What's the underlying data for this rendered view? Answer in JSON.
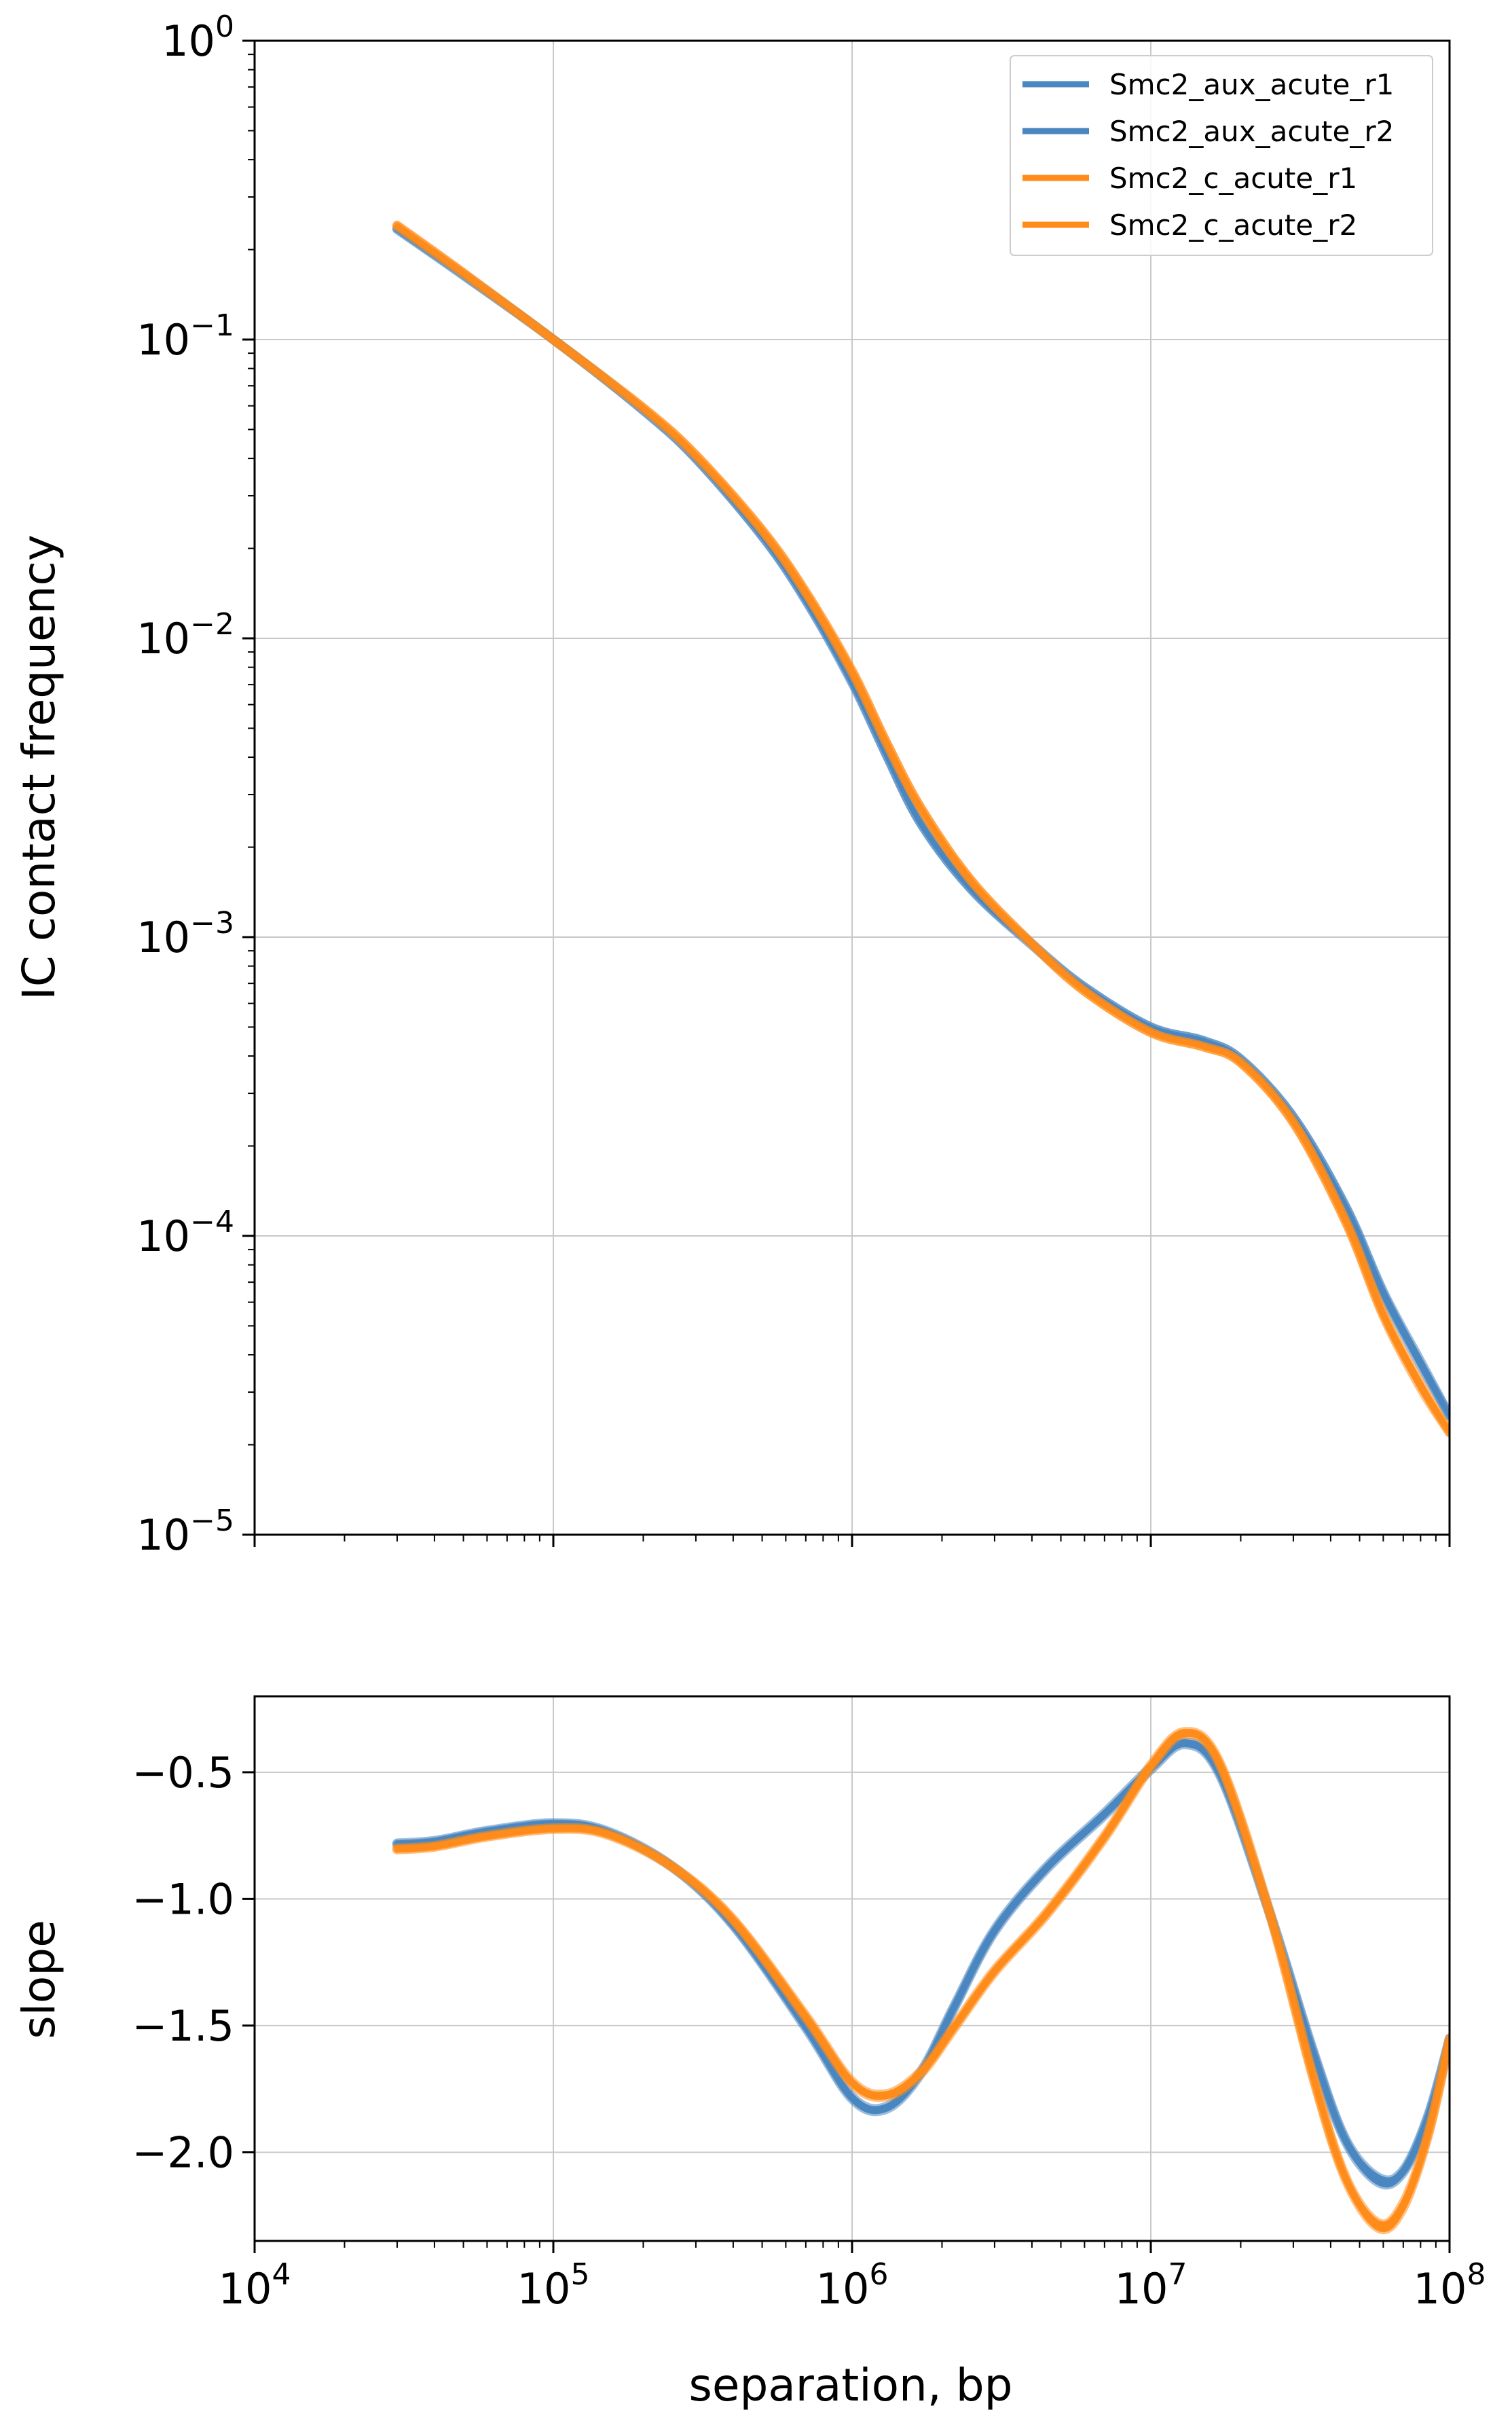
{
  "figure": {
    "xlabel": "separation, bp",
    "colors": {
      "aux": "#4a86c0",
      "c": "#ff8c1a",
      "grid": "#c8c8c8"
    }
  },
  "chart_data": [
    {
      "type": "line",
      "id": "top",
      "title": "",
      "xlabel": "",
      "ylabel": "IC contact frequency",
      "xscale": "log",
      "yscale": "log",
      "xlim": [
        10000,
        100000000
      ],
      "ylim": [
        1e-05,
        1
      ],
      "grid": true,
      "legend": "top-right",
      "x_ticks": [
        {
          "value": 10000,
          "base": "10",
          "exp": "4"
        },
        {
          "value": 100000,
          "base": "10",
          "exp": "5"
        },
        {
          "value": 1000000,
          "base": "10",
          "exp": "6"
        },
        {
          "value": 10000000,
          "base": "10",
          "exp": "7"
        },
        {
          "value": 100000000,
          "base": "10",
          "exp": "8"
        }
      ],
      "y_ticks": [
        {
          "value": 1,
          "base": "10",
          "exp": "0"
        },
        {
          "value": 0.1,
          "base": "10",
          "exp": "−1"
        },
        {
          "value": 0.01,
          "base": "10",
          "exp": "−2"
        },
        {
          "value": 0.001,
          "base": "10",
          "exp": "−3"
        },
        {
          "value": 0.0001,
          "base": "10",
          "exp": "−4"
        },
        {
          "value": 1e-05,
          "base": "10",
          "exp": "−5"
        }
      ],
      "series": [
        {
          "name": "Smc2_aux_acute_r1",
          "color": "#4a86c0",
          "x": [
            30000,
            50000,
            100000,
            200000,
            300000,
            500000,
            700000,
            1000000,
            1300000,
            1700000,
            2500000,
            4000000,
            6000000,
            10000000,
            15000000,
            20000000,
            30000000,
            45000000,
            60000000,
            80000000,
            100000000
          ],
          "y": [
            0.235,
            0.165,
            0.1,
            0.058,
            0.04,
            0.022,
            0.0135,
            0.0072,
            0.0041,
            0.0024,
            0.00145,
            0.00095,
            0.00068,
            0.0005,
            0.00045,
            0.00039,
            0.00025,
            0.000125,
            6.5e-05,
            3.8e-05,
            2.5e-05
          ]
        },
        {
          "name": "Smc2_aux_acute_r2",
          "color": "#4a86c0",
          "x": [
            30000,
            50000,
            100000,
            200000,
            300000,
            500000,
            700000,
            1000000,
            1300000,
            1700000,
            2500000,
            4000000,
            6000000,
            10000000,
            15000000,
            20000000,
            30000000,
            45000000,
            60000000,
            80000000,
            100000000
          ],
          "y": [
            0.234,
            0.164,
            0.1,
            0.058,
            0.04,
            0.022,
            0.0134,
            0.0071,
            0.0041,
            0.0024,
            0.00145,
            0.00094,
            0.00068,
            0.0005,
            0.00045,
            0.00039,
            0.00025,
            0.000124,
            6.4e-05,
            3.7e-05,
            2.5e-05
          ]
        },
        {
          "name": "Smc2_c_acute_r1",
          "color": "#ff8c1a",
          "x": [
            30000,
            50000,
            100000,
            200000,
            300000,
            500000,
            700000,
            1000000,
            1300000,
            1700000,
            2500000,
            4000000,
            6000000,
            10000000,
            15000000,
            20000000,
            30000000,
            45000000,
            60000000,
            80000000,
            100000000
          ],
          "y": [
            0.24,
            0.167,
            0.1,
            0.059,
            0.041,
            0.023,
            0.0142,
            0.0077,
            0.0045,
            0.0027,
            0.00155,
            0.00095,
            0.00066,
            0.00048,
            0.00043,
            0.00038,
            0.00024,
            0.000112,
            5.5e-05,
            3.2e-05,
            2.2e-05
          ]
        },
        {
          "name": "Smc2_c_acute_r2",
          "color": "#ff8c1a",
          "x": [
            30000,
            50000,
            100000,
            200000,
            300000,
            500000,
            700000,
            1000000,
            1300000,
            1700000,
            2500000,
            4000000,
            6000000,
            10000000,
            15000000,
            20000000,
            30000000,
            45000000,
            60000000,
            80000000,
            100000000
          ],
          "y": [
            0.241,
            0.167,
            0.1,
            0.059,
            0.041,
            0.023,
            0.0143,
            0.0078,
            0.0045,
            0.0027,
            0.00155,
            0.00095,
            0.00066,
            0.00048,
            0.00043,
            0.00038,
            0.00024,
            0.000111,
            5.4e-05,
            3.1e-05,
            2.2e-05
          ]
        }
      ]
    },
    {
      "type": "line",
      "id": "bottom",
      "title": "",
      "xlabel": "separation, bp",
      "ylabel": "slope",
      "xscale": "log",
      "yscale": "linear",
      "xlim": [
        10000,
        100000000
      ],
      "ylim": [
        -2.35,
        -0.2
      ],
      "grid": true,
      "x_ticks": [
        {
          "value": 10000,
          "base": "10",
          "exp": "4"
        },
        {
          "value": 100000,
          "base": "10",
          "exp": "5"
        },
        {
          "value": 1000000,
          "base": "10",
          "exp": "6"
        },
        {
          "value": 10000000,
          "base": "10",
          "exp": "7"
        },
        {
          "value": 100000000,
          "base": "10",
          "exp": "8"
        }
      ],
      "y_ticks": [
        {
          "value": -0.5,
          "label": "−0.5"
        },
        {
          "value": -1.0,
          "label": "−1.0"
        },
        {
          "value": -1.5,
          "label": "−1.5"
        },
        {
          "value": -2.0,
          "label": "−2.0"
        }
      ],
      "series": [
        {
          "name": "Smc2_aux_acute_r1",
          "color": "#4a86c0",
          "x": [
            30000,
            40000,
            60000,
            100000,
            150000,
            250000,
            400000,
            700000,
            1000000,
            1300000,
            1700000,
            2200000,
            3000000,
            4500000,
            7000000,
            10000000,
            13000000,
            17000000,
            25000000,
            35000000,
            45000000,
            58000000,
            70000000,
            85000000,
            100000000
          ],
          "y": [
            -0.78,
            -0.77,
            -0.73,
            -0.7,
            -0.73,
            -0.87,
            -1.1,
            -1.5,
            -1.78,
            -1.82,
            -1.68,
            -1.42,
            -1.12,
            -0.87,
            -0.66,
            -0.48,
            -0.38,
            -0.5,
            -1.05,
            -1.6,
            -1.95,
            -2.1,
            -2.07,
            -1.85,
            -1.55
          ]
        },
        {
          "name": "Smc2_aux_acute_r2",
          "color": "#4a86c0",
          "x": [
            30000,
            40000,
            60000,
            100000,
            150000,
            250000,
            400000,
            700000,
            1000000,
            1300000,
            1700000,
            2200000,
            3000000,
            4500000,
            7000000,
            10000000,
            13000000,
            17000000,
            25000000,
            35000000,
            45000000,
            58000000,
            70000000,
            85000000,
            100000000
          ],
          "y": [
            -0.785,
            -0.775,
            -0.735,
            -0.705,
            -0.735,
            -0.875,
            -1.105,
            -1.51,
            -1.79,
            -1.83,
            -1.69,
            -1.43,
            -1.13,
            -0.88,
            -0.67,
            -0.49,
            -0.39,
            -0.51,
            -1.06,
            -1.61,
            -1.96,
            -2.12,
            -2.08,
            -1.86,
            -1.56
          ]
        },
        {
          "name": "Smc2_c_acute_r1",
          "color": "#ff8c1a",
          "x": [
            30000,
            40000,
            60000,
            100000,
            150000,
            250000,
            400000,
            700000,
            1000000,
            1300000,
            1700000,
            2200000,
            3000000,
            4500000,
            7000000,
            10000000,
            13000000,
            17000000,
            25000000,
            35000000,
            45000000,
            58000000,
            70000000,
            85000000,
            100000000
          ],
          "y": [
            -0.8,
            -0.79,
            -0.75,
            -0.72,
            -0.74,
            -0.87,
            -1.08,
            -1.46,
            -1.72,
            -1.77,
            -1.68,
            -1.5,
            -1.28,
            -1.05,
            -0.75,
            -0.47,
            -0.34,
            -0.46,
            -1.05,
            -1.7,
            -2.1,
            -2.28,
            -2.2,
            -1.92,
            -1.55
          ]
        },
        {
          "name": "Smc2_c_acute_r2",
          "color": "#ff8c1a",
          "x": [
            30000,
            40000,
            60000,
            100000,
            150000,
            250000,
            400000,
            700000,
            1000000,
            1300000,
            1700000,
            2200000,
            3000000,
            4500000,
            7000000,
            10000000,
            13000000,
            17000000,
            25000000,
            35000000,
            45000000,
            58000000,
            70000000,
            85000000,
            100000000
          ],
          "y": [
            -0.805,
            -0.795,
            -0.755,
            -0.725,
            -0.745,
            -0.875,
            -1.085,
            -1.47,
            -1.73,
            -1.78,
            -1.69,
            -1.51,
            -1.29,
            -1.06,
            -0.76,
            -0.48,
            -0.35,
            -0.47,
            -1.06,
            -1.71,
            -2.11,
            -2.3,
            -2.22,
            -1.93,
            -1.56
          ]
        }
      ]
    }
  ]
}
